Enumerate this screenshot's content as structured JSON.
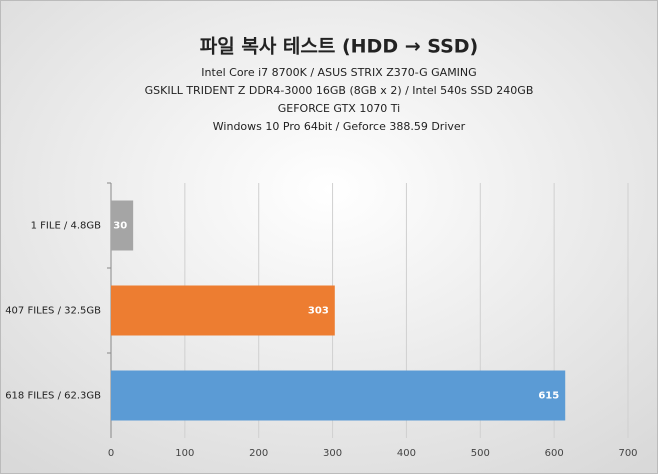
{
  "chart_data": {
    "type": "hbar",
    "title": "파일 복사 테스트 (HDD → SSD)",
    "subtitle_lines": [
      "Intel Core i7 8700K  / ASUS STRIX Z370-G  GAMING",
      "GSKILL TRIDENT Z DDR4-3000  16GB (8GB x 2) / Intel 540s SSD 240GB",
      "GEFORCE GTX 1070 Ti",
      "Windows 10 Pro 64bit / Geforce 388.59 Driver"
    ],
    "categories": [
      "1 FILE / 4.8GB",
      "407 FILES / 32.5GB",
      "618 FILES / 62.3GB"
    ],
    "values": [
      30,
      303,
      615
    ],
    "colors": [
      "#a5a5a5",
      "#ed7d31",
      "#5b9bd5"
    ],
    "xlim": [
      0,
      700
    ],
    "xticks": [
      0,
      100,
      200,
      300,
      400,
      500,
      600,
      700
    ],
    "grid": true
  }
}
